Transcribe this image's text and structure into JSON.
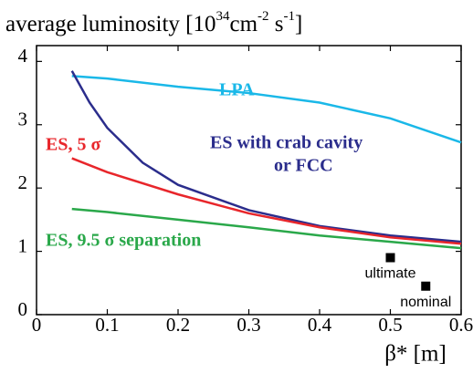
{
  "chart_data": {
    "type": "line",
    "title": [
      "average luminosity [10",
      "34",
      "cm",
      "-2",
      " s",
      "-1",
      "]"
    ],
    "x_label": "β* [m]",
    "xlim": [
      0,
      0.6
    ],
    "xticks": [
      0,
      0.1,
      0.2,
      0.3,
      0.4,
      0.5,
      0.6
    ],
    "ylim": [
      0,
      4.25
    ],
    "yticks": [
      0,
      1,
      2,
      3,
      4
    ],
    "series": [
      {
        "name_lines": [
          "LPA"
        ],
        "color": "#1ab8e8",
        "x": [
          0.05,
          0.1,
          0.2,
          0.3,
          0.4,
          0.5,
          0.6
        ],
        "values": [
          3.77,
          3.73,
          3.6,
          3.5,
          3.35,
          3.1,
          2.72
        ]
      },
      {
        "name_lines": [
          "ES with crab cavity",
          "or FCC"
        ],
        "color": "#2b2d8c",
        "x": [
          0.05,
          0.075,
          0.1,
          0.15,
          0.2,
          0.3,
          0.4,
          0.5,
          0.6
        ],
        "values": [
          3.85,
          3.35,
          2.95,
          2.4,
          2.05,
          1.65,
          1.4,
          1.25,
          1.15
        ]
      },
      {
        "name_lines": [
          "ES, 5 σ"
        ],
        "color": "#e8262b",
        "x": [
          0.05,
          0.1,
          0.2,
          0.3,
          0.4,
          0.5,
          0.6
        ],
        "values": [
          2.47,
          2.25,
          1.9,
          1.6,
          1.38,
          1.22,
          1.12
        ]
      },
      {
        "name_lines": [
          "ES, 9.5 σ separation"
        ],
        "color": "#2aa84a",
        "x": [
          0.05,
          0.1,
          0.2,
          0.3,
          0.4,
          0.5,
          0.6
        ],
        "values": [
          1.67,
          1.62,
          1.5,
          1.38,
          1.25,
          1.15,
          1.05
        ]
      }
    ],
    "points": [
      {
        "label": "ultimate",
        "x": 0.5,
        "y": 0.9
      },
      {
        "label": "nominal",
        "x": 0.55,
        "y": 0.45
      }
    ]
  }
}
